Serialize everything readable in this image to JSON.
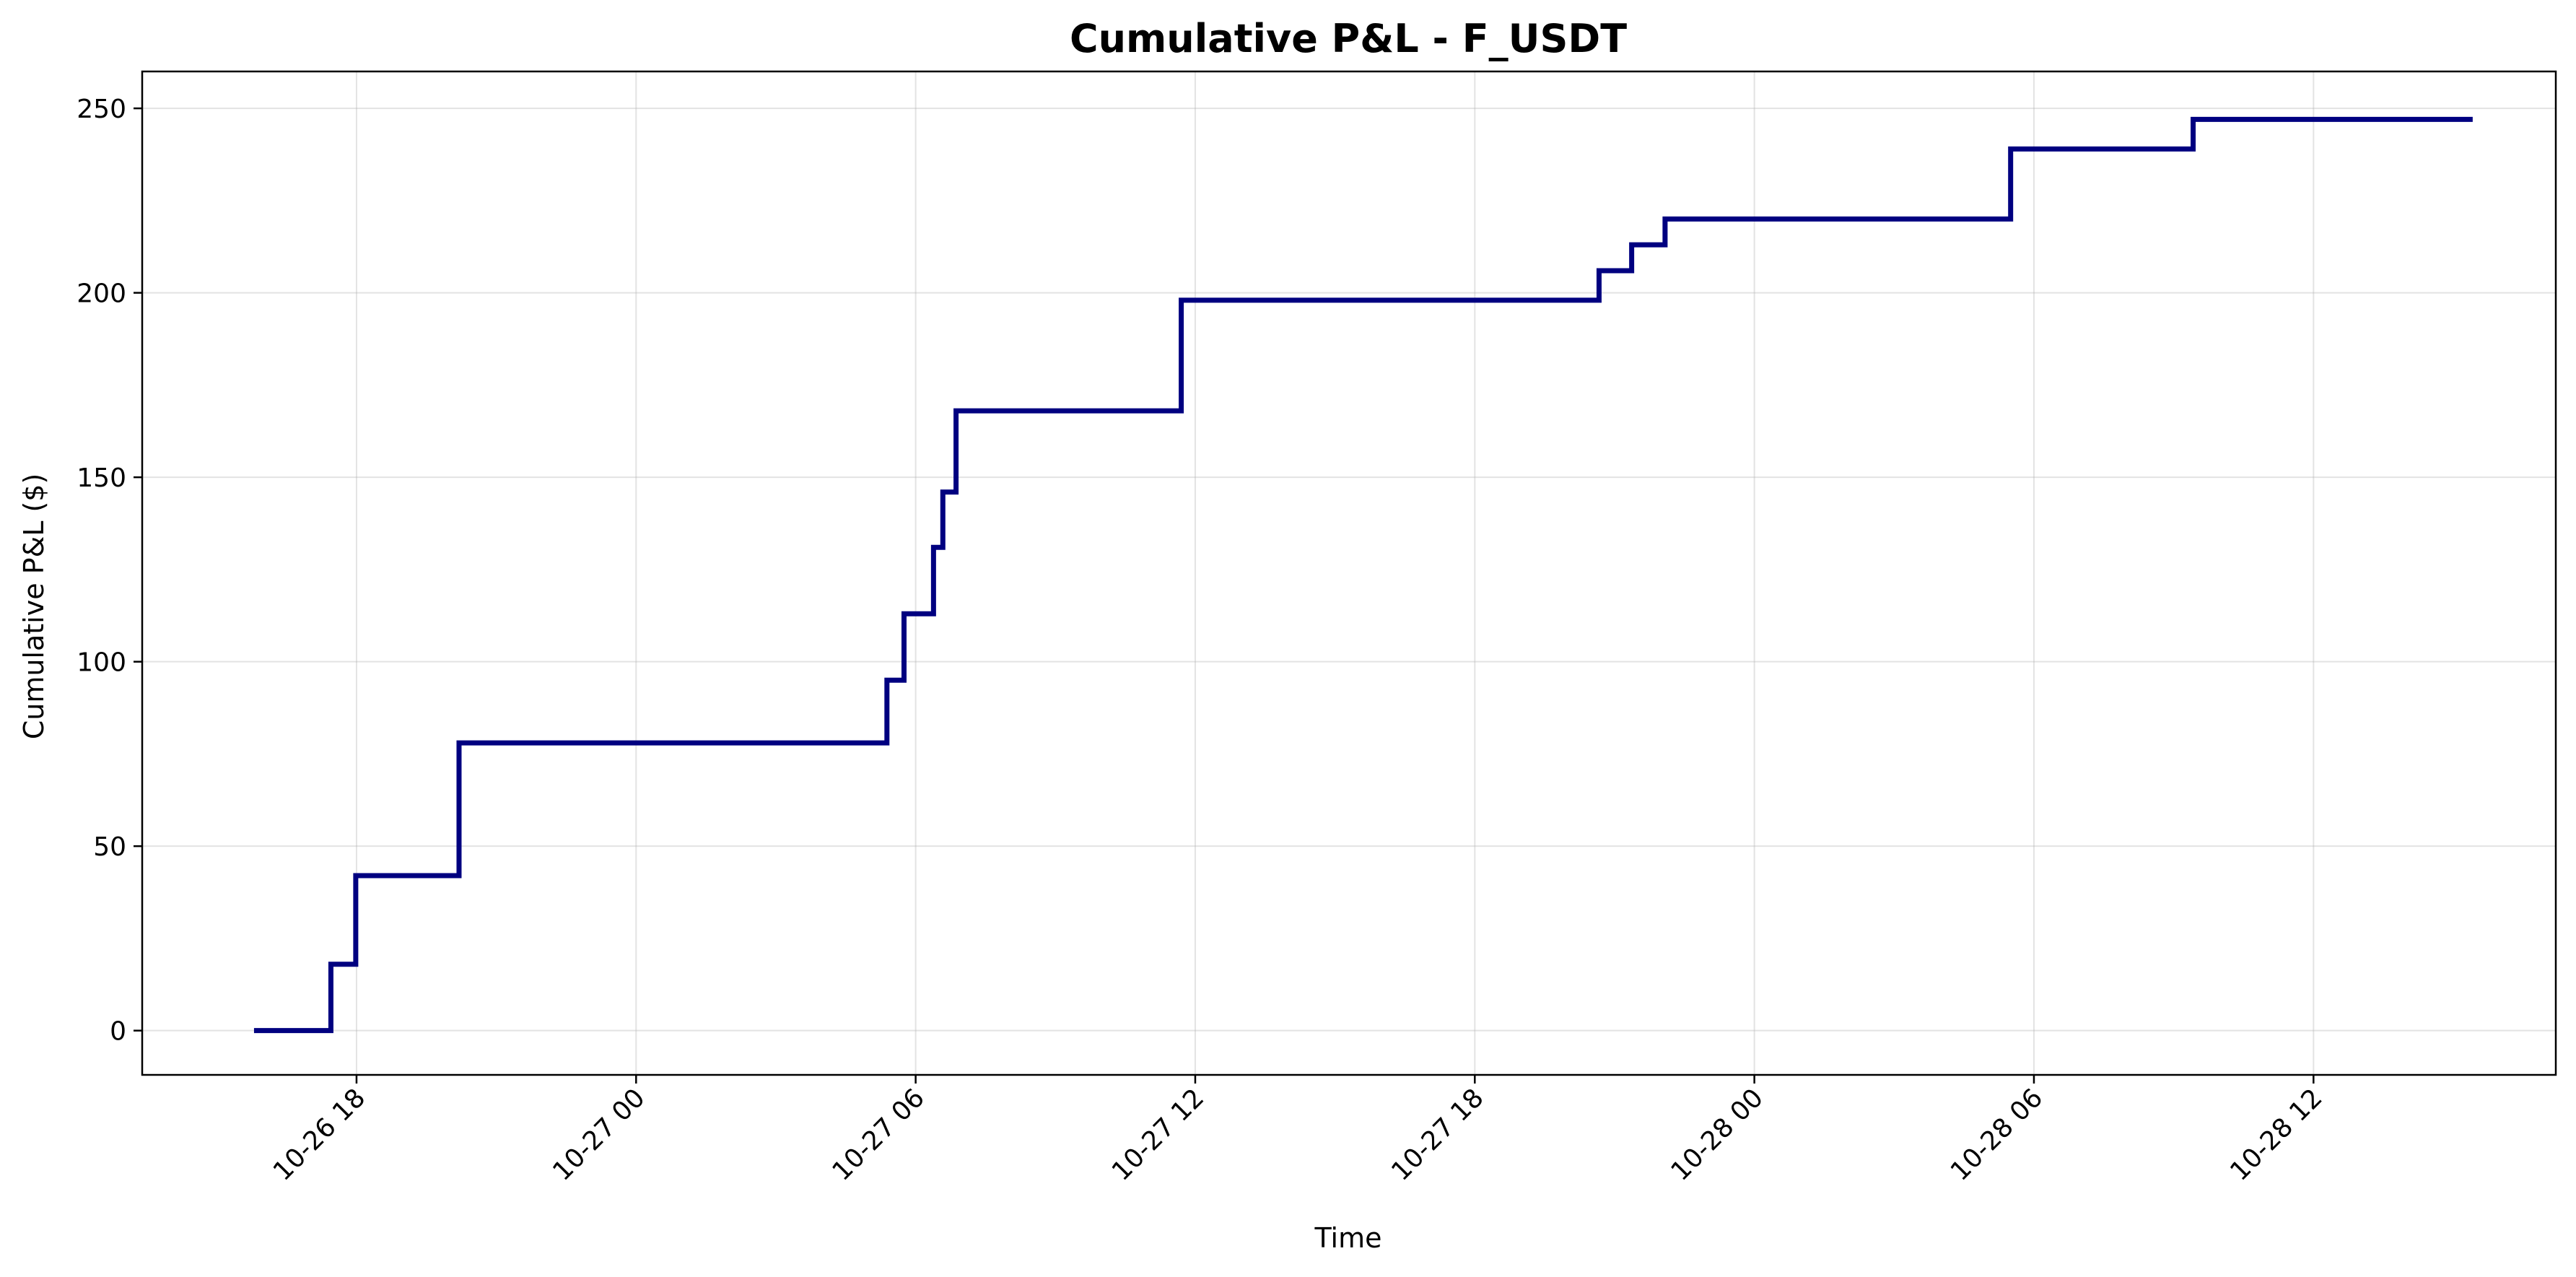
{
  "chart_data": {
    "type": "line",
    "title": "Cumulative P&L - F_USDT",
    "xlabel": "Time",
    "ylabel": "Cumulative P&L ($)",
    "xlim": [
      "2025-10-26 13:24",
      "2025-10-28 17:12"
    ],
    "ylim": [
      -12,
      260
    ],
    "x_ticks": [
      {
        "t": "2025-10-26 18:00",
        "label": "10-26 18"
      },
      {
        "t": "2025-10-27 00:00",
        "label": "10-27 00"
      },
      {
        "t": "2025-10-27 06:00",
        "label": "10-27 06"
      },
      {
        "t": "2025-10-27 12:00",
        "label": "10-27 12"
      },
      {
        "t": "2025-10-27 18:00",
        "label": "10-27 18"
      },
      {
        "t": "2025-10-28 00:00",
        "label": "10-28 00"
      },
      {
        "t": "2025-10-28 06:00",
        "label": "10-28 06"
      },
      {
        "t": "2025-10-28 12:00",
        "label": "10-28 12"
      }
    ],
    "y_ticks": [
      0,
      50,
      100,
      150,
      200,
      250
    ],
    "grid": true,
    "color": "#000080",
    "series": [
      {
        "step": "post",
        "points": [
          {
            "t": "2025-10-26 15:48",
            "y": 0
          },
          {
            "t": "2025-10-26 17:27",
            "y": 18
          },
          {
            "t": "2025-10-26 17:59",
            "y": 42
          },
          {
            "t": "2025-10-26 20:12",
            "y": 78
          },
          {
            "t": "2025-10-27 05:23",
            "y": 95
          },
          {
            "t": "2025-10-27 05:45",
            "y": 113
          },
          {
            "t": "2025-10-27 06:23",
            "y": 131
          },
          {
            "t": "2025-10-27 06:35",
            "y": 146
          },
          {
            "t": "2025-10-27 06:52",
            "y": 168
          },
          {
            "t": "2025-10-27 11:42",
            "y": 198
          },
          {
            "t": "2025-10-27 20:40",
            "y": 206
          },
          {
            "t": "2025-10-27 21:22",
            "y": 213
          },
          {
            "t": "2025-10-27 22:05",
            "y": 220
          },
          {
            "t": "2025-10-28 05:30",
            "y": 239
          },
          {
            "t": "2025-10-28 09:25",
            "y": 247
          },
          {
            "t": "2025-10-28 15:25",
            "y": 247
          }
        ]
      }
    ]
  }
}
